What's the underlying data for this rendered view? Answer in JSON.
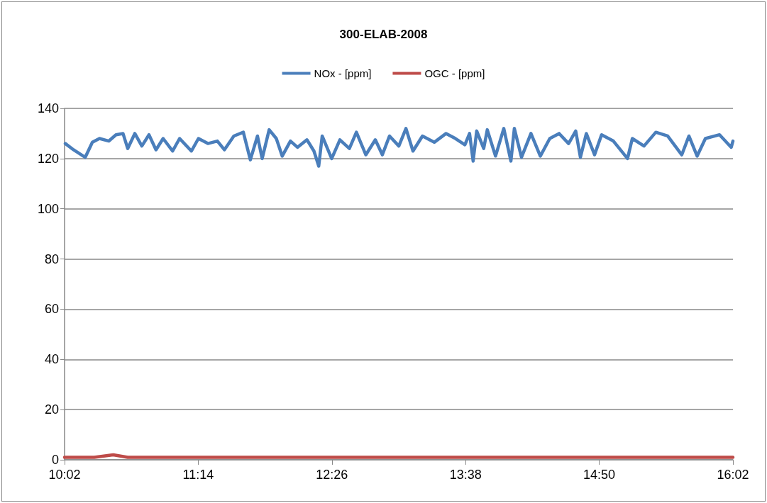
{
  "chart_data": {
    "type": "line",
    "title": "300-ELAB-2008",
    "legend": "top",
    "grid": "y",
    "marker": "none",
    "line_style": "solid",
    "xlim": [
      10.0333,
      16.0333
    ],
    "xticks": [
      {
        "value": 10.0333,
        "label": "10:02"
      },
      {
        "value": 11.2333,
        "label": "11:14"
      },
      {
        "value": 12.4333,
        "label": "12:26"
      },
      {
        "value": 13.6333,
        "label": "13:38"
      },
      {
        "value": 14.8333,
        "label": "14:50"
      },
      {
        "value": 16.0333,
        "label": "16:02"
      }
    ],
    "ylim": [
      0,
      140
    ],
    "yticks": [
      0,
      20,
      40,
      60,
      80,
      100,
      120,
      140
    ],
    "series": [
      {
        "name": "NOx - [ppm]",
        "color": "#4a7ebb",
        "x": [
          10.04,
          10.114,
          10.219,
          10.283,
          10.347,
          10.431,
          10.495,
          10.558,
          10.6,
          10.664,
          10.727,
          10.791,
          10.854,
          10.918,
          11.003,
          11.066,
          11.172,
          11.235,
          11.32,
          11.405,
          11.468,
          11.553,
          11.638,
          11.701,
          11.765,
          11.807,
          11.87,
          11.934,
          11.987,
          12.061,
          12.124,
          12.209,
          12.272,
          12.315,
          12.346,
          12.431,
          12.505,
          12.59,
          12.653,
          12.738,
          12.823,
          12.886,
          12.95,
          13.034,
          13.098,
          13.161,
          13.246,
          13.352,
          13.458,
          13.542,
          13.627,
          13.669,
          13.701,
          13.733,
          13.796,
          13.828,
          13.902,
          13.976,
          14.04,
          14.071,
          14.135,
          14.22,
          14.304,
          14.389,
          14.473,
          14.558,
          14.622,
          14.664,
          14.717,
          14.791,
          14.854,
          14.96,
          15.087,
          15.13,
          15.235,
          15.341,
          15.447,
          15.574,
          15.638,
          15.712,
          15.786,
          15.913,
          16.018,
          16.0333
        ],
        "values": [
          126,
          123.5,
          120.5,
          126.5,
          128,
          127,
          129.5,
          130,
          124,
          130,
          125,
          129.5,
          123.5,
          128,
          123,
          128,
          123,
          128,
          126,
          127,
          123.5,
          129,
          130.5,
          119.5,
          129,
          120,
          131.5,
          128,
          121,
          127,
          124.5,
          127.5,
          123,
          117,
          129,
          120,
          127.5,
          124,
          130.5,
          121.5,
          127.5,
          121.5,
          129,
          125,
          132,
          123,
          129,
          126.5,
          130,
          128,
          125.5,
          130,
          119,
          131,
          124,
          131.5,
          121,
          132,
          119,
          132,
          120.5,
          130,
          121,
          128,
          130,
          126,
          131,
          120.5,
          130,
          121.5,
          129.5,
          127,
          120,
          128,
          125,
          130.5,
          129,
          121.5,
          129,
          121,
          128,
          129.5,
          124.5,
          127
        ]
      },
      {
        "name": "OGC - [ppm]",
        "color": "#be4b48",
        "x": [
          10.0333,
          10.3,
          10.47,
          10.6,
          11,
          11.5,
          12,
          12.5,
          13,
          13.5,
          14,
          14.5,
          15,
          15.5,
          16.0333
        ],
        "values": [
          1,
          1,
          2,
          1,
          1,
          1,
          1,
          1,
          1,
          1,
          1,
          1,
          1,
          1,
          1
        ]
      }
    ]
  }
}
